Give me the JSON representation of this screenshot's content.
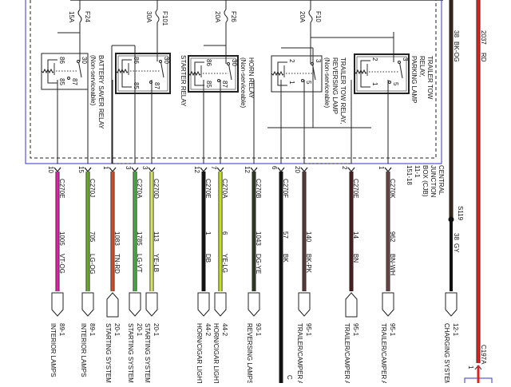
{
  "fuses": [
    {
      "name": "F24",
      "rating": "15A"
    },
    {
      "name": "F101",
      "rating": "30A"
    },
    {
      "name": "F26",
      "rating": "20A"
    },
    {
      "name": "F10",
      "rating": "20A"
    }
  ],
  "relays": [
    {
      "title": "BATTERY SAVER RELAY",
      "note": "(Non-serviceable)",
      "pins": [
        "86",
        "30",
        "85",
        "87"
      ]
    },
    {
      "title": "STARTER RELAY",
      "note": "",
      "pins": [
        "86",
        "30",
        "85",
        "87"
      ]
    },
    {
      "title": "HORN RELAY",
      "note": "(Non-serviceable)",
      "pins": [
        "86",
        "30",
        "85",
        "87"
      ]
    },
    {
      "title": "TRAILER TOW RELAY,",
      "title2": "REVERSING LAMP",
      "note": "(Non-serviceable)",
      "pins": [
        "2",
        "3",
        "1",
        "5"
      ]
    },
    {
      "title": "TRAILER TOW",
      "title2": "RELAY,",
      "note": "PARKING LAMP",
      "pins": [
        "2",
        "3",
        "1",
        "5"
      ]
    }
  ],
  "junction_box": {
    "lines": [
      "CENTRAL",
      "JUNCTION",
      "BOX (CJB)",
      "11-1",
      "151-18"
    ],
    "border_color": "#3333cc"
  },
  "wires": [
    {
      "connector": "C270E",
      "pin": "10",
      "circuit": "1005",
      "code": "VT-OG",
      "color": "#e020a8",
      "dest_page": "89-1",
      "dest": "INTERIOR LAMPS"
    },
    {
      "connector": "C270J",
      "pin": "15",
      "circuit": "705",
      "code": "LG-OG",
      "color": "#6aaa30",
      "dest_page": "89-1",
      "dest": "INTERIOR LAMPS"
    },
    {
      "connector": "",
      "pin": "1",
      "circuit": "1083",
      "code": "TN-RD",
      "color": "#d05028",
      "dest_page": "20-1",
      "dest": "STARTING SYSTEM"
    },
    {
      "connector": "C270A",
      "pin": "3",
      "circuit": "1785",
      "code": "LG-VT",
      "color": "#3fb040",
      "dest_page": "20-1",
      "dest": "STARTING SYSTEM"
    },
    {
      "connector": "C270D",
      "pin": "3",
      "circuit": "113",
      "code": "YE-LB",
      "color": "#d6e266",
      "dest_page": "20-1",
      "dest": "STARTING SYSTEM"
    },
    {
      "connector": "C270E",
      "pin": "12",
      "circuit": "1",
      "code": "DB",
      "color": "#111111",
      "dest_page": "44-2",
      "dest": "HORN/CIGAR LIGHTER"
    },
    {
      "connector": "C270A",
      "pin": "7",
      "circuit": "6",
      "code": "YE-LG",
      "color": "#c6e020",
      "dest_page": "44-2",
      "dest": "HORN/CIGAR LIGHTER"
    },
    {
      "connector": "C270B",
      "pin": "12",
      "circuit": "1043",
      "code": "DG-YE",
      "color": "#2e3a22",
      "dest_page": "93-1",
      "dest": "REVERSING LAMPS"
    },
    {
      "connector": "C270F",
      "pin": "6",
      "circuit": "57",
      "code": "BK",
      "color": "#111111",
      "dest_page": "",
      "dest": "C"
    },
    {
      "connector": "",
      "pin": "20",
      "circuit": "140",
      "code": "BK-PK",
      "color": "#5a3838",
      "dest_page": "95-1",
      "dest": "TRAILER/CAMPER A"
    },
    {
      "connector": "C270E",
      "pin": "2",
      "circuit": "14",
      "code": "BN",
      "color": "#4a1c1c",
      "dest_page": "95-1",
      "dest": "TRAILER/CAMPER A"
    },
    {
      "connector": "C270K",
      "pin": "1",
      "circuit": "962",
      "code": "BN-WH",
      "color": "#6a4444",
      "dest_page": "95-1",
      "dest": "TRAILER/CAMPER A"
    }
  ],
  "charging": {
    "top_circuit": "38",
    "top_code": "BK-OG",
    "top_color": "#3a2418",
    "splice": "S119",
    "circuit": "38",
    "code": "GY",
    "color": "#111111",
    "dest_page": "12-1",
    "dest": "CHARGING SYSTEM"
  },
  "battery_feed": {
    "circuit": "2037",
    "code": "RD",
    "color": "#e02020",
    "connector": "C197A",
    "pin": "1"
  }
}
